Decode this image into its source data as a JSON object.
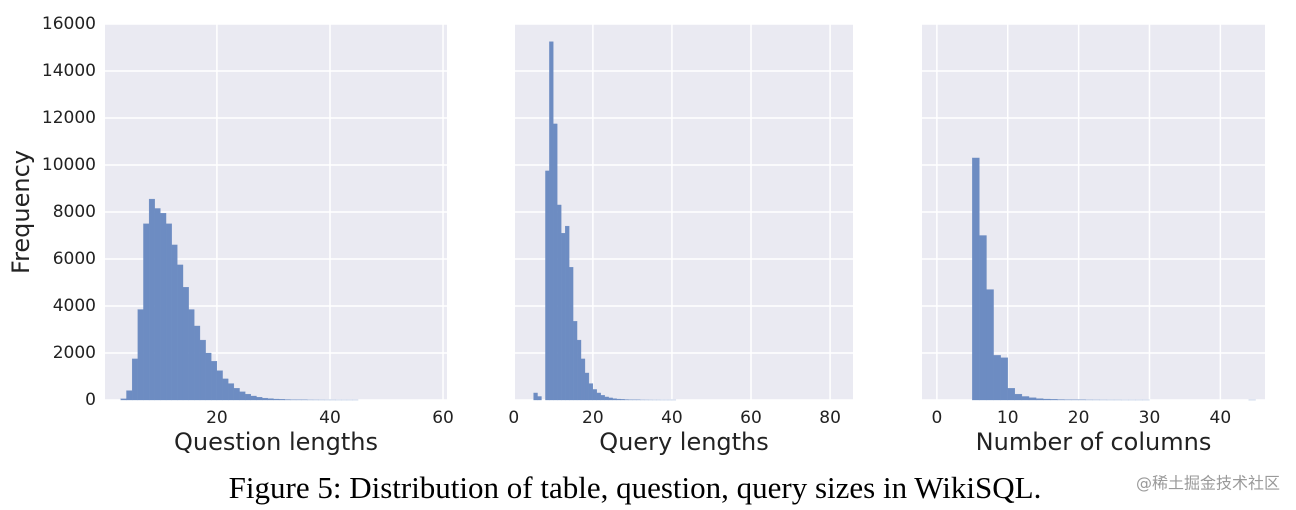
{
  "chart_data": [
    {
      "type": "histogram",
      "xlabel": "Question lengths",
      "ylabel": "Frequency",
      "color": "#6d8cc2",
      "grid": true,
      "xlim": [
        0.2,
        60.7
      ],
      "xticks": [
        20,
        40,
        60
      ],
      "ylim": [
        0,
        16000
      ],
      "yticks": [
        0,
        2000,
        4000,
        6000,
        8000,
        10000,
        12000,
        14000,
        16000
      ],
      "bins": [
        3,
        4,
        5,
        6,
        7,
        8,
        9,
        10,
        11,
        12,
        13,
        14,
        15,
        16,
        17,
        18,
        19,
        20,
        21,
        22,
        23,
        24,
        25,
        26,
        27,
        28,
        29,
        30,
        31,
        32,
        33,
        34,
        35,
        36,
        37,
        38,
        39,
        40,
        41,
        42,
        43,
        44,
        45,
        46
      ],
      "values": [
        50,
        400,
        1750,
        3850,
        7500,
        8550,
        8150,
        7950,
        7500,
        6600,
        5750,
        4800,
        3850,
        3150,
        2550,
        2000,
        1650,
        1250,
        900,
        700,
        500,
        350,
        250,
        170,
        120,
        80,
        60,
        40,
        30,
        20,
        15,
        10,
        8,
        5,
        4,
        3,
        2,
        2,
        1,
        1,
        1,
        1,
        0
      ]
    },
    {
      "type": "histogram",
      "xlabel": "Query lengths",
      "color": "#6d8cc2",
      "grid": true,
      "sharey": true,
      "xlim": [
        0.3,
        85.8
      ],
      "xticks": [
        0,
        20,
        40,
        60,
        80
      ],
      "ylim": [
        0,
        16000
      ],
      "yticks": [
        0,
        2000,
        4000,
        6000,
        8000,
        10000,
        12000,
        14000,
        16000
      ],
      "bins": [
        5,
        6,
        7,
        8,
        9,
        10,
        11,
        12,
        13,
        14,
        15,
        16,
        17,
        18,
        19,
        20,
        21,
        22,
        23,
        24,
        25,
        26,
        27,
        28,
        29,
        30,
        31,
        32,
        33,
        34,
        35,
        36,
        37,
        38,
        39,
        40,
        41,
        42,
        43,
        44,
        45,
        46
      ],
      "values": [
        300,
        150,
        0,
        9750,
        15250,
        11750,
        8300,
        7100,
        7400,
        5650,
        3350,
        2550,
        1750,
        1150,
        700,
        450,
        300,
        200,
        130,
        90,
        60,
        40,
        30,
        20,
        15,
        10,
        8,
        5,
        4,
        3,
        2,
        2,
        1,
        1,
        1,
        1,
        0,
        0,
        0,
        0,
        0
      ]
    },
    {
      "type": "histogram",
      "xlabel": "Number of columns",
      "color": "#6d8cc2",
      "grid": true,
      "sharey": true,
      "xlim": [
        -2.1,
        46.3
      ],
      "xticks": [
        0,
        10,
        20,
        30,
        40
      ],
      "ylim": [
        0,
        16000
      ],
      "yticks": [
        0,
        2000,
        4000,
        6000,
        8000,
        10000,
        12000,
        14000,
        16000
      ],
      "bins": [
        5,
        6,
        7,
        8,
        9,
        10,
        11,
        12,
        13,
        14,
        15,
        16,
        17,
        18,
        19,
        20,
        21,
        22,
        23,
        24,
        25,
        26,
        27,
        28,
        29,
        30,
        31,
        32,
        33,
        34,
        35,
        36,
        37,
        38,
        39,
        40,
        41,
        42,
        43,
        44,
        45
      ],
      "values": [
        10300,
        7000,
        4700,
        1900,
        1800,
        500,
        250,
        150,
        100,
        60,
        40,
        30,
        20,
        15,
        10,
        8,
        5,
        4,
        3,
        2,
        2,
        1,
        1,
        1,
        1,
        0,
        0,
        0,
        0,
        0,
        0,
        0,
        0,
        0,
        0,
        0,
        0,
        0,
        0,
        1
      ]
    }
  ],
  "caption": "Figure 5:  Distribution of table, question, query sizes in WikiSQL.",
  "watermark": "@稀土掘金技术社区"
}
